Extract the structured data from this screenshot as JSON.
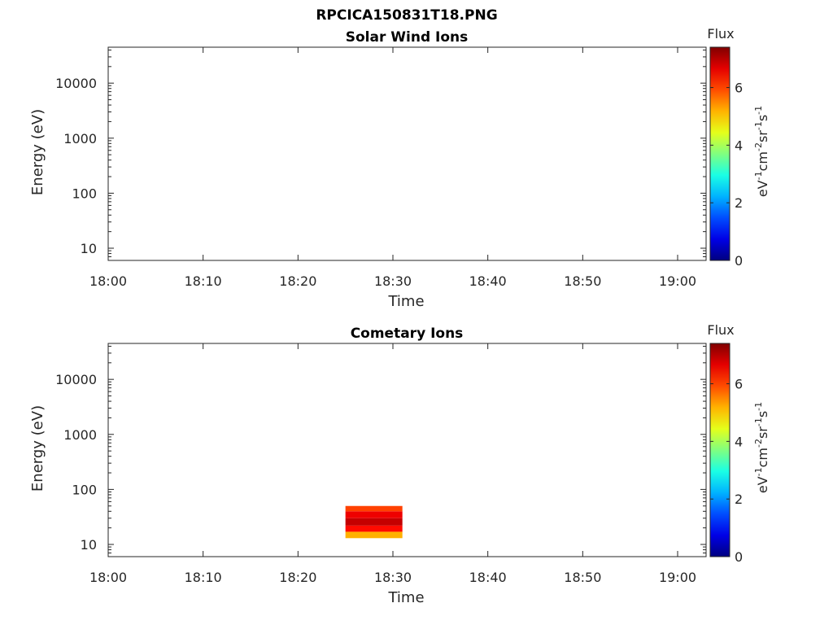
{
  "figure_title": "RPCICA150831T18.PNG",
  "chart_data": [
    {
      "type": "heatmap",
      "title": "Solar Wind Ions",
      "xlabel": "Time",
      "ylabel": "Energy (eV)",
      "y_scale": "log",
      "ylim": [
        6,
        45000
      ],
      "xlim": [
        "18:00",
        "19:03"
      ],
      "x_tick_labels": [
        "18:00",
        "18:10",
        "18:20",
        "18:30",
        "18:40",
        "18:50",
        "19:00"
      ],
      "y_tick_labels": [
        "10",
        "100",
        "1000",
        "10000"
      ],
      "y_tick_values": [
        10,
        100,
        1000,
        10000
      ],
      "colorbar": {
        "title": "Flux",
        "unit_label": "eV-1cm-2sr-1s-1",
        "ticks": [
          "0",
          "2",
          "4",
          "6"
        ],
        "range": [
          0,
          7.4
        ],
        "colormap": "jet"
      },
      "data": []
    },
    {
      "type": "heatmap",
      "title": "Cometary Ions",
      "xlabel": "Time",
      "ylabel": "Energy (eV)",
      "y_scale": "log",
      "ylim": [
        6,
        45000
      ],
      "xlim": [
        "18:00",
        "19:03"
      ],
      "x_tick_labels": [
        "18:00",
        "18:10",
        "18:20",
        "18:30",
        "18:40",
        "18:50",
        "19:00"
      ],
      "y_tick_labels": [
        "10",
        "100",
        "1000",
        "10000"
      ],
      "y_tick_values": [
        10,
        100,
        1000,
        10000
      ],
      "colorbar": {
        "title": "Flux",
        "unit_label": "eV-1cm-2sr-1s-1",
        "ticks": [
          "0",
          "2",
          "4",
          "6"
        ],
        "range": [
          0,
          7.4
        ],
        "colormap": "jet"
      },
      "data": [
        {
          "time_start": "18:25",
          "time_end": "18:31",
          "energy_low": 13,
          "energy_high": 17,
          "flux": 5.2
        },
        {
          "time_start": "18:25",
          "time_end": "18:31",
          "energy_low": 17,
          "energy_high": 22,
          "flux": 6.4
        },
        {
          "time_start": "18:25",
          "time_end": "18:31",
          "energy_low": 22,
          "energy_high": 30,
          "flux": 6.9
        },
        {
          "time_start": "18:25",
          "time_end": "18:31",
          "energy_low": 30,
          "energy_high": 40,
          "flux": 6.6
        },
        {
          "time_start": "18:25",
          "time_end": "18:31",
          "energy_low": 40,
          "energy_high": 50,
          "flux": 6.0
        }
      ]
    }
  ]
}
